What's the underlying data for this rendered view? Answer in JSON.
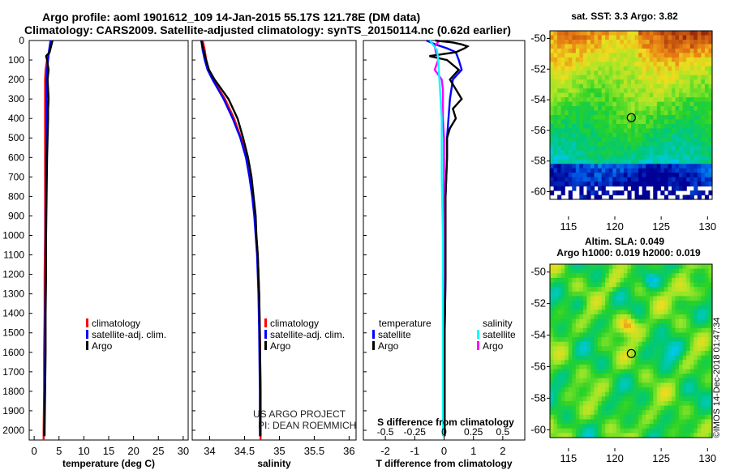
{
  "header": {
    "line1": "Argo profile: aoml 1901612_109 14-Jan-2015 55.17S 121.78E (DM data)",
    "line2": "Climatology: CARS2009. Satellite-adjusted climatology: synTS_20150114.nc (0.62d earlier)"
  },
  "colors": {
    "climatology": "#ff0000",
    "satellite": "#0000ff",
    "argo": "#000000",
    "satellite_salinity": "#00ffff",
    "argo_salinity": "#ff00ff"
  },
  "depth_axis": {
    "range": [
      0,
      2050
    ],
    "ticks": [
      "0",
      "100",
      "200",
      "300",
      "400",
      "500",
      "600",
      "700",
      "800",
      "900",
      "1000",
      "1100",
      "1200",
      "1300",
      "1400",
      "1500",
      "1600",
      "1700",
      "1800",
      "1900",
      "2000"
    ]
  },
  "legend": {
    "climatology": "climatology",
    "satellite_adj": "satellite-adj. clim.",
    "argo": "Argo",
    "temperature": "temperature",
    "salinity": "salinity",
    "satellite": "satellite"
  },
  "credits": {
    "project": "US ARGO PROJECT",
    "pi": "PI: DEAN ROEMMICH"
  },
  "timestamp": "©IMOS 14-Dec-2018 01:47:34",
  "chart_data": [
    {
      "type": "line",
      "title": "",
      "xlabel": "temperature (deg C)",
      "ylabel": "",
      "xlim": [
        -1,
        31
      ],
      "ylim": [
        2050,
        0
      ],
      "xticks": [
        "0",
        "5",
        "10",
        "15",
        "20",
        "25",
        "30"
      ],
      "series": [
        {
          "name": "climatology",
          "depth": [
            0,
            50,
            100,
            150,
            200,
            300,
            400,
            500,
            600,
            800,
            1000,
            1200,
            1400,
            1600,
            1800,
            2000,
            2050
          ],
          "values": [
            3.6,
            3.2,
            2.6,
            2.3,
            2.2,
            2.2,
            2.2,
            2.2,
            2.2,
            2.2,
            2.2,
            2.1,
            2.1,
            2.0,
            2.0,
            1.9,
            1.9
          ]
        },
        {
          "name": "satellite-adj. clim.",
          "depth": [
            0,
            50,
            100,
            150,
            200,
            300,
            400,
            500,
            600,
            800,
            1000,
            1200,
            1400,
            1600,
            1800,
            2000,
            2030
          ],
          "values": [
            3.3,
            3.0,
            2.8,
            2.6,
            2.5,
            2.5,
            2.5,
            2.5,
            2.4,
            2.4,
            2.3,
            2.3,
            2.2,
            2.2,
            2.1,
            2.0,
            2.0
          ]
        },
        {
          "name": "Argo",
          "depth": [
            0,
            20,
            40,
            60,
            80,
            100,
            150,
            200,
            250,
            300,
            350,
            400,
            500,
            600,
            800,
            1000,
            1200,
            1400,
            1600,
            1800,
            2000,
            2030
          ],
          "values": [
            3.7,
            3.5,
            3.3,
            3.1,
            2.4,
            2.6,
            2.9,
            2.7,
            2.8,
            2.9,
            2.8,
            2.8,
            2.7,
            2.6,
            2.5,
            2.4,
            2.4,
            2.3,
            2.3,
            2.2,
            2.1,
            2.1
          ]
        }
      ]
    },
    {
      "type": "line",
      "title": "",
      "xlabel": "salinity",
      "ylabel": "",
      "xlim": [
        33.75,
        36.1
      ],
      "ylim": [
        2050,
        0
      ],
      "xticks": [
        "34",
        "34.5",
        "35",
        "35.5",
        "36"
      ],
      "series": [
        {
          "name": "climatology",
          "depth": [
            0,
            50,
            100,
            150,
            200,
            300,
            400,
            500,
            600,
            700,
            800,
            900,
            1000,
            1100,
            1200,
            1300,
            1500,
            1800,
            2000,
            2050
          ],
          "values": [
            33.9,
            33.93,
            33.95,
            33.98,
            34.05,
            34.22,
            34.35,
            34.45,
            34.53,
            34.58,
            34.62,
            34.65,
            34.67,
            34.69,
            34.7,
            34.71,
            34.72,
            34.73,
            34.73,
            34.73
          ]
        },
        {
          "name": "satellite-adj. clim.",
          "depth": [
            0,
            50,
            100,
            150,
            200,
            300,
            400,
            500,
            600,
            700,
            800,
            900,
            1000,
            1100,
            1200,
            1300,
            1500,
            1800,
            2000,
            2030
          ],
          "values": [
            33.88,
            33.9,
            33.93,
            33.97,
            34.04,
            34.2,
            34.33,
            34.44,
            34.52,
            34.57,
            34.61,
            34.64,
            34.66,
            34.68,
            34.69,
            34.7,
            34.71,
            34.72,
            34.72,
            34.72
          ]
        },
        {
          "name": "Argo",
          "depth": [
            0,
            30,
            60,
            100,
            150,
            200,
            300,
            400,
            500,
            600,
            700,
            800,
            900,
            1000,
            1100,
            1200,
            1300,
            1500,
            1800,
            2000,
            2030
          ],
          "values": [
            33.88,
            33.9,
            33.92,
            33.95,
            33.99,
            34.07,
            34.27,
            34.4,
            34.48,
            34.55,
            34.6,
            34.63,
            34.66,
            34.67,
            34.69,
            34.7,
            34.71,
            34.72,
            34.73,
            34.73,
            34.73
          ]
        }
      ]
    },
    {
      "type": "line",
      "title": "",
      "xlabel": "T difference from climatology",
      "xlabel_top": "S difference from climatology",
      "ylabel": "",
      "xlim": [
        -2.75,
        2.75
      ],
      "ylim": [
        2050,
        0
      ],
      "xticks": [
        "-2",
        "-1",
        "0",
        "1",
        "2"
      ],
      "xticks_top": [
        "-0.5",
        "-0.25",
        "0",
        "0.25",
        "0.5"
      ],
      "series": [
        {
          "name": "temperature satellite",
          "depth": [
            0,
            20,
            40,
            60,
            100,
            150,
            200,
            300,
            400,
            500,
            600,
            800,
            1000,
            1200,
            1500,
            2030
          ],
          "values": [
            -0.6,
            -0.3,
            0.1,
            0.4,
            0.5,
            0.6,
            0.3,
            0.2,
            0.15,
            0.1,
            0.1,
            0.05,
            0.05,
            0.05,
            0.02,
            0.02
          ]
        },
        {
          "name": "temperature Argo",
          "depth": [
            0,
            10,
            20,
            30,
            40,
            60,
            80,
            100,
            150,
            200,
            250,
            300,
            350,
            400,
            450,
            500,
            600,
            800,
            1000,
            1200,
            1500,
            2030
          ],
          "values": [
            -0.3,
            0.3,
            0.6,
            0.8,
            0.7,
            0.4,
            -0.5,
            0.1,
            0.5,
            0.2,
            0.4,
            0.6,
            0.3,
            0.4,
            0.2,
            0.1,
            0.1,
            0.05,
            0.05,
            0.05,
            0.02,
            0.02
          ]
        },
        {
          "name": "salinity satellite",
          "depth": [
            0,
            50,
            100,
            200,
            300,
            400,
            500,
            700,
            1000,
            1300,
            1600,
            1900,
            2030
          ],
          "values": [
            -0.12,
            -0.06,
            -0.05,
            -0.04,
            -0.03,
            -0.02,
            -0.02,
            -0.02,
            -0.01,
            -0.01,
            -0.01,
            -0.01,
            -0.01
          ]
        },
        {
          "name": "salinity Argo",
          "depth": [
            0,
            30,
            60,
            100,
            150,
            200,
            250,
            300,
            400,
            500,
            700,
            1000,
            1300,
            1600,
            1900,
            2030
          ],
          "values": [
            -0.04,
            -0.08,
            -0.07,
            -0.05,
            -0.08,
            -0.02,
            -0.01,
            -0.01,
            -0.01,
            0,
            0,
            0,
            0,
            0,
            0,
            0
          ]
        }
      ]
    },
    {
      "type": "heatmap",
      "title": "sat. SST: 3.3 Argo: 3.82",
      "xlabel": "",
      "ylabel": "",
      "xlim": [
        113,
        130.5
      ],
      "ylim": [
        -60.5,
        -49.5
      ],
      "xticks": [
        "115",
        "120",
        "125",
        "130"
      ],
      "yticks": [
        "-50",
        "-52",
        "-54",
        "-56",
        "-58",
        "-60"
      ],
      "marker": {
        "lon": 121.78,
        "lat": -55.17
      }
    },
    {
      "type": "heatmap",
      "title": "Altim. SLA: 0.049",
      "subtitle": "Argo h1000: 0.019 h2000: 0.019",
      "xlabel": "",
      "ylabel": "",
      "xlim": [
        113,
        130.5
      ],
      "ylim": [
        -60.5,
        -49.5
      ],
      "xticks": [
        "115",
        "120",
        "125",
        "130"
      ],
      "yticks": [
        "-50",
        "-52",
        "-54",
        "-56",
        "-58",
        "-60"
      ],
      "marker": {
        "lon": 121.78,
        "lat": -55.17
      }
    }
  ]
}
